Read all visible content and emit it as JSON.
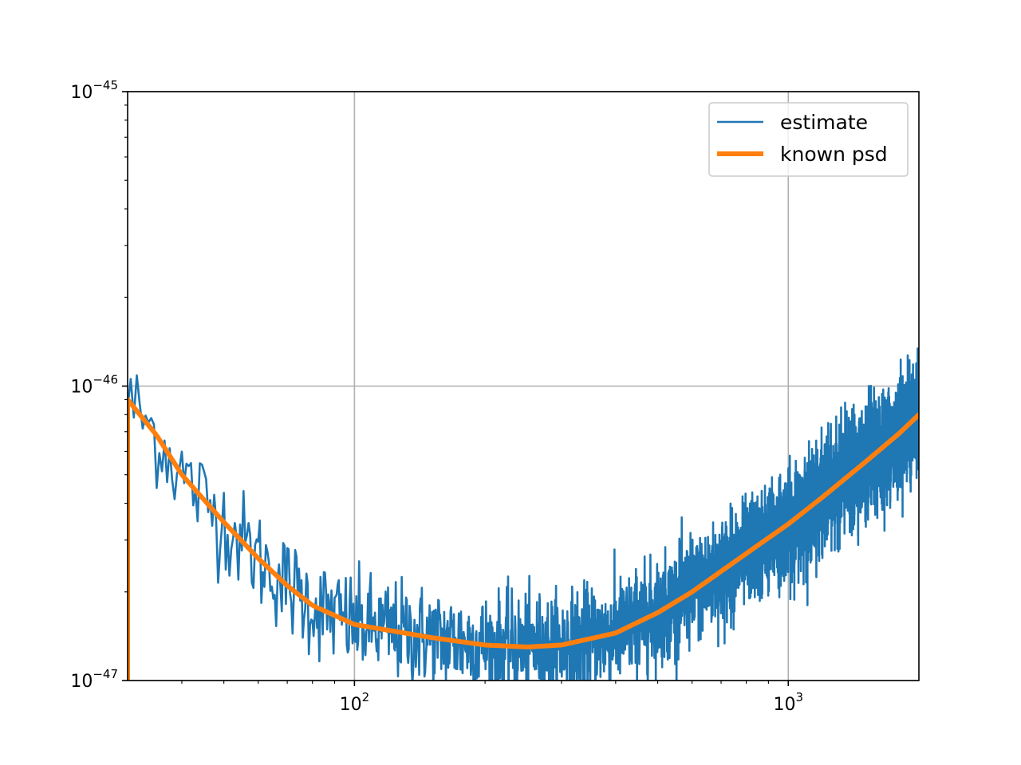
{
  "chart_data": {
    "type": "line",
    "title": "",
    "xlabel": "",
    "ylabel": "",
    "xscale": "log",
    "yscale": "log",
    "xlim": [
      30,
      2000
    ],
    "ylim": [
      1e-47,
      1e-45
    ],
    "grid": true,
    "legend_position": "top-right",
    "x_ticks": [
      {
        "base": "10",
        "exp": "2",
        "value": 100
      },
      {
        "base": "10",
        "exp": "3",
        "value": 1000
      }
    ],
    "y_ticks": [
      {
        "base": "10",
        "exp": "−47",
        "value": 1e-47
      },
      {
        "base": "10",
        "exp": "−46",
        "value": 1e-46
      },
      {
        "base": "10",
        "exp": "−45",
        "value": 1e-45
      }
    ],
    "series": [
      {
        "name": "estimate",
        "color": "#1f77b4",
        "style": "noisy",
        "x": [
          30,
          35,
          40,
          50,
          60,
          70,
          80,
          100,
          150,
          200,
          250,
          300,
          400,
          500,
          600,
          800,
          1000,
          1200,
          1500,
          1800,
          2000
        ],
        "y": [
          9e-47,
          6.8e-47,
          5e-47,
          3.45e-47,
          2.6e-47,
          2.1e-47,
          1.8e-47,
          1.55e-47,
          1.4e-47,
          1.32e-47,
          1.3e-47,
          1.32e-47,
          1.45e-47,
          1.7e-47,
          2e-47,
          2.7e-47,
          3.4e-47,
          4.2e-47,
          5.5e-47,
          6.9e-47,
          8e-47
        ]
      },
      {
        "name": "known psd",
        "color": "#ff7f0e",
        "style": "smooth",
        "x": [
          30,
          35,
          40,
          50,
          60,
          70,
          80,
          100,
          150,
          200,
          250,
          300,
          400,
          500,
          600,
          800,
          1000,
          1200,
          1500,
          1800,
          2000
        ],
        "y": [
          9e-47,
          6.8e-47,
          5e-47,
          3.45e-47,
          2.6e-47,
          2.1e-47,
          1.8e-47,
          1.55e-47,
          1.4e-47,
          1.32e-47,
          1.3e-47,
          1.32e-47,
          1.45e-47,
          1.7e-47,
          2e-47,
          2.7e-47,
          3.4e-47,
          4.2e-47,
          5.5e-47,
          6.9e-47,
          8e-47
        ]
      }
    ]
  }
}
